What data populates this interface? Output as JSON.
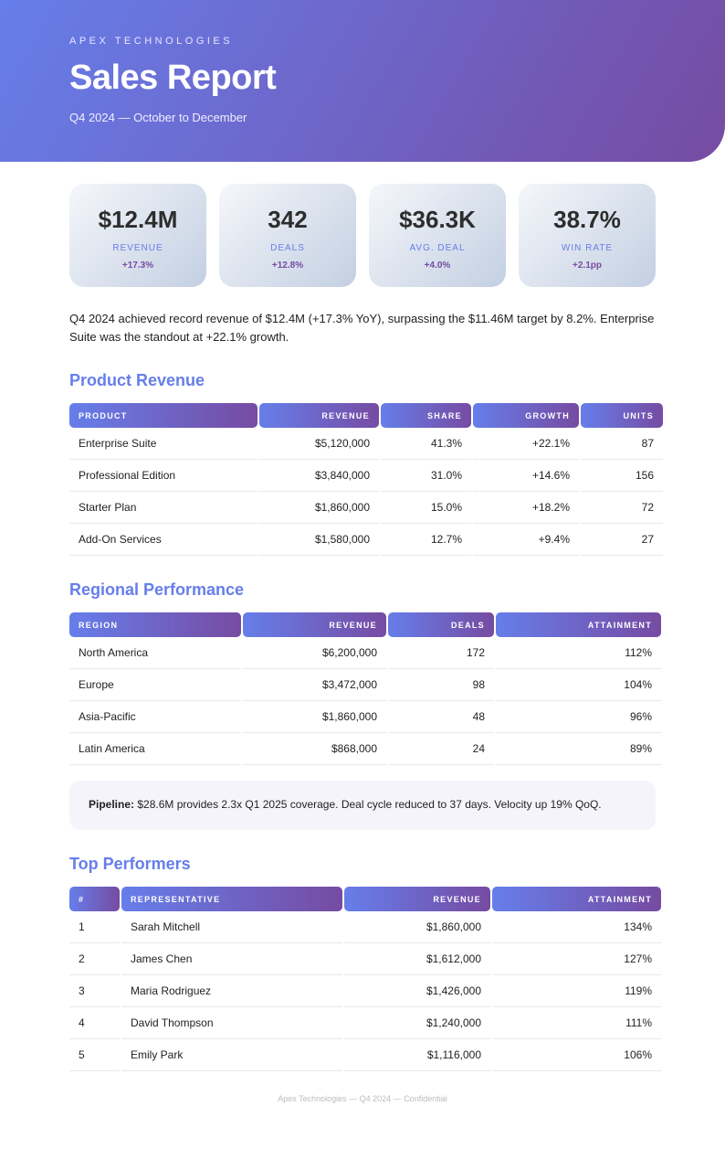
{
  "header": {
    "brand": "APEX TECHNOLOGIES",
    "title": "Sales Report",
    "subtitle": "Q4 2024 — October to December"
  },
  "kpis": [
    {
      "value": "$12.4M",
      "label": "REVENUE",
      "delta": "+17.3%"
    },
    {
      "value": "342",
      "label": "DEALS",
      "delta": "+12.8%"
    },
    {
      "value": "$36.3K",
      "label": "AVG. DEAL",
      "delta": "+4.0%"
    },
    {
      "value": "38.7%",
      "label": "WIN RATE",
      "delta": "+2.1pp"
    }
  ],
  "summary": "Q4 2024 achieved record revenue of $12.4M (+17.3% YoY), surpassing the $11.46M target by 8.2%. Enterprise Suite was the standout at +22.1% growth.",
  "product": {
    "title": "Product Revenue",
    "headers": [
      "PRODUCT",
      "REVENUE",
      "SHARE",
      "GROWTH",
      "UNITS"
    ],
    "rows": [
      [
        "Enterprise Suite",
        "$5,120,000",
        "41.3%",
        "+22.1%",
        "87"
      ],
      [
        "Professional Edition",
        "$3,840,000",
        "31.0%",
        "+14.6%",
        "156"
      ],
      [
        "Starter Plan",
        "$1,860,000",
        "15.0%",
        "+18.2%",
        "72"
      ],
      [
        "Add-On Services",
        "$1,580,000",
        "12.7%",
        "+9.4%",
        "27"
      ]
    ]
  },
  "regional": {
    "title": "Regional Performance",
    "headers": [
      "REGION",
      "REVENUE",
      "DEALS",
      "ATTAINMENT"
    ],
    "rows": [
      [
        "North America",
        "$6,200,000",
        "172",
        "112%"
      ],
      [
        "Europe",
        "$3,472,000",
        "98",
        "104%"
      ],
      [
        "Asia-Pacific",
        "$1,860,000",
        "48",
        "96%"
      ],
      [
        "Latin America",
        "$868,000",
        "24",
        "89%"
      ]
    ]
  },
  "pipeline": {
    "label": "Pipeline:",
    "text": " $28.6M provides 2.3x Q1 2025 coverage. Deal cycle reduced to 37 days. Velocity up 19% QoQ."
  },
  "performers": {
    "title": "Top Performers",
    "headers": [
      "#",
      "REPRESENTATIVE",
      "REVENUE",
      "ATTAINMENT"
    ],
    "rows": [
      [
        "1",
        "Sarah Mitchell",
        "$1,860,000",
        "134%"
      ],
      [
        "2",
        "James Chen",
        "$1,612,000",
        "127%"
      ],
      [
        "3",
        "Maria Rodriguez",
        "$1,426,000",
        "119%"
      ],
      [
        "4",
        "David Thompson",
        "$1,240,000",
        "111%"
      ],
      [
        "5",
        "Emily Park",
        "$1,116,000",
        "106%"
      ]
    ]
  },
  "footer": "Apex Technologies — Q4 2024 — Confidential",
  "colors": {
    "accent": "#667eea",
    "accent2": "#764ba2"
  }
}
